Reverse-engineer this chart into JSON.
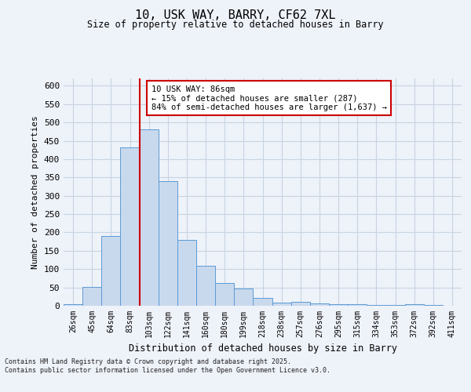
{
  "title_line1": "10, USK WAY, BARRY, CF62 7XL",
  "title_line2": "Size of property relative to detached houses in Barry",
  "xlabel": "Distribution of detached houses by size in Barry",
  "ylabel": "Number of detached properties",
  "categories": [
    "26sqm",
    "45sqm",
    "64sqm",
    "83sqm",
    "103sqm",
    "122sqm",
    "141sqm",
    "160sqm",
    "180sqm",
    "199sqm",
    "218sqm",
    "238sqm",
    "257sqm",
    "276sqm",
    "295sqm",
    "315sqm",
    "334sqm",
    "353sqm",
    "372sqm",
    "392sqm",
    "411sqm"
  ],
  "values": [
    5,
    52,
    190,
    432,
    480,
    340,
    180,
    110,
    62,
    47,
    22,
    8,
    10,
    6,
    4,
    4,
    2,
    2,
    5,
    2,
    1
  ],
  "bar_color": "#c9d9ed",
  "bar_edge_color": "#5b9bd5",
  "grid_color": "#c8d4e3",
  "background_color": "#eef2f9",
  "red_line_x": 3.5,
  "annotation_text": "10 USK WAY: 86sqm\n← 15% of detached houses are smaller (287)\n84% of semi-detached houses are larger (1,637) →",
  "annotation_box_color": "#ffffff",
  "annotation_box_edge": "#cc0000",
  "footer_text": "Contains HM Land Registry data © Crown copyright and database right 2025.\nContains public sector information licensed under the Open Government Licence v3.0.",
  "ylim": [
    0,
    620
  ],
  "yticks": [
    0,
    50,
    100,
    150,
    200,
    250,
    300,
    350,
    400,
    450,
    500,
    550,
    600
  ]
}
